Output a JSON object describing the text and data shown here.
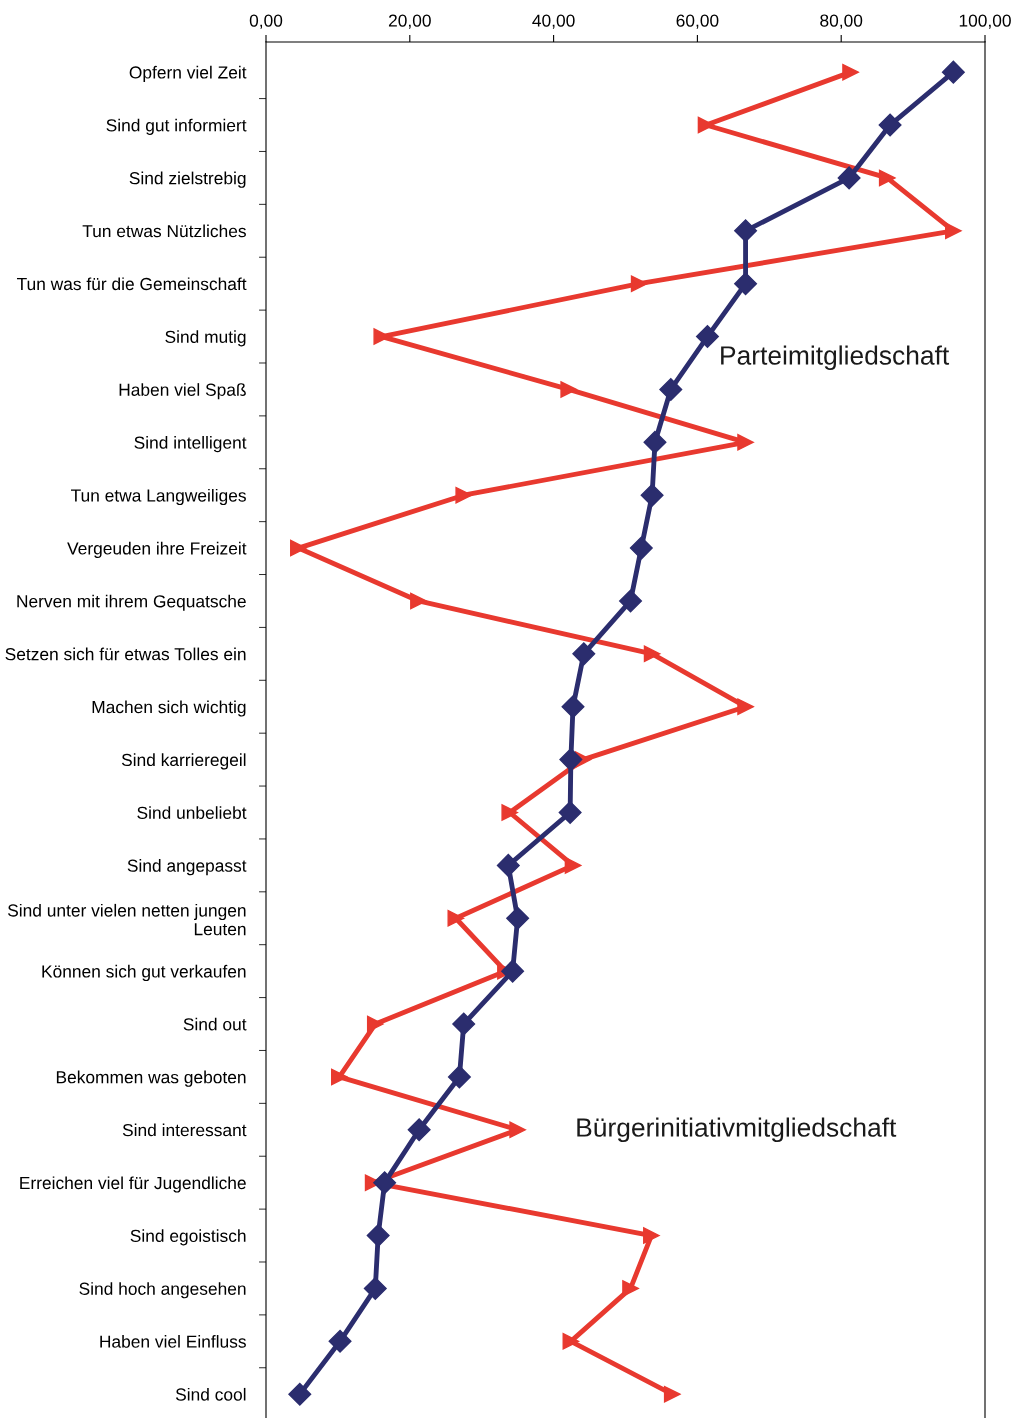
{
  "chart_data": {
    "type": "line",
    "orientation": "horizontal",
    "categories": [
      "Opfern viel Zeit",
      "Sind gut informiert",
      "Sind zielstrebig",
      "Tun etwas Nützliches",
      "Tun was für die Gemeinschaft",
      "Sind mutig",
      "Haben viel Spaß",
      "Sind intelligent",
      "Tun etwa Langweiliges",
      "Vergeuden ihre Freizeit",
      "Nerven mit ihrem Gequatsche",
      "Setzen sich für etwas Tolles ein",
      "Machen sich wichtig",
      "Sind karrieregeil",
      "Sind unbeliebt",
      "Sind angepasst",
      "Sind unter vielen netten jungen\nLeuten",
      "Können sich gut verkaufen",
      "Sind out",
      "Bekommen was geboten",
      "Sind interessant",
      "Erreichen viel für Jugendliche",
      "Sind egoistisch",
      "Sind hoch angesehen",
      "Haben viel Einfluss",
      "Sind cool"
    ],
    "series": [
      {
        "name": "Parteimitgliedschaft",
        "color": "#2b2d6e",
        "marker": "diamond",
        "values": [
          95.6,
          86.8,
          81.1,
          66.7,
          66.7,
          61.4,
          56.3,
          54.1,
          53.7,
          52.2,
          50.7,
          44.2,
          42.7,
          42.4,
          42.3,
          33.7,
          35.0,
          34.3,
          27.5,
          26.9,
          21.3,
          16.5,
          15.6,
          15.2,
          10.3,
          4.7
        ]
      },
      {
        "name": "Bürgerinitiativmitgliedschaft",
        "color": "#e8392f",
        "marker": "triangle",
        "values": [
          81.3,
          61.2,
          86.4,
          95.6,
          51.9,
          16.1,
          42.1,
          66.7,
          27.5,
          4.5,
          21.2,
          53.7,
          66.7,
          44.1,
          33.9,
          42.7,
          26.4,
          33.3,
          15.2,
          10.2,
          35.0,
          14.9,
          53.6,
          50.7,
          42.4,
          56.5
        ]
      }
    ],
    "xlim": [
      0,
      100
    ],
    "xticks": [
      {
        "value": 0,
        "label": "0,00"
      },
      {
        "value": 20,
        "label": "20,00"
      },
      {
        "value": 40,
        "label": "40,00"
      },
      {
        "value": 60,
        "label": "60,00"
      },
      {
        "value": 80,
        "label": "80,00"
      },
      {
        "value": 100,
        "label": "100,00"
      }
    ],
    "grid": false,
    "legend": false,
    "line_style": "solid"
  }
}
